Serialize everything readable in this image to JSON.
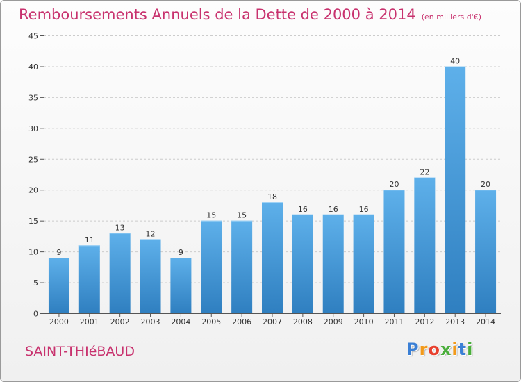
{
  "header": {
    "title": "Remboursements Annuels de la Dette de 2000 à 2014",
    "subtitle": "(en milliers d'€)"
  },
  "footer": {
    "commune": "SAINT-THIéBAUD",
    "logo_text": "Proxiti",
    "logo_colors": [
      "#3a7fd5",
      "#f29a1b",
      "#e8402e",
      "#4aae3b",
      "#f29a1b",
      "#3a7fd5",
      "#4aae3b"
    ]
  },
  "colors": {
    "bar_top": "#5eb0ea",
    "bar_bottom": "#2f7fc0",
    "grid": "#cccccc",
    "title": "#c8326e"
  },
  "chart_data": {
    "type": "bar",
    "categories": [
      "2000",
      "2001",
      "2002",
      "2003",
      "2004",
      "2005",
      "2006",
      "2007",
      "2008",
      "2009",
      "2010",
      "2011",
      "2012",
      "2013",
      "2014"
    ],
    "values": [
      9,
      11,
      13,
      12,
      9,
      15,
      15,
      18,
      16,
      16,
      16,
      20,
      22,
      40,
      20
    ],
    "ylim": [
      0,
      45
    ],
    "yticks": [
      0,
      5,
      10,
      15,
      20,
      25,
      30,
      35,
      40,
      45
    ],
    "grid": true,
    "data_labels": true
  }
}
